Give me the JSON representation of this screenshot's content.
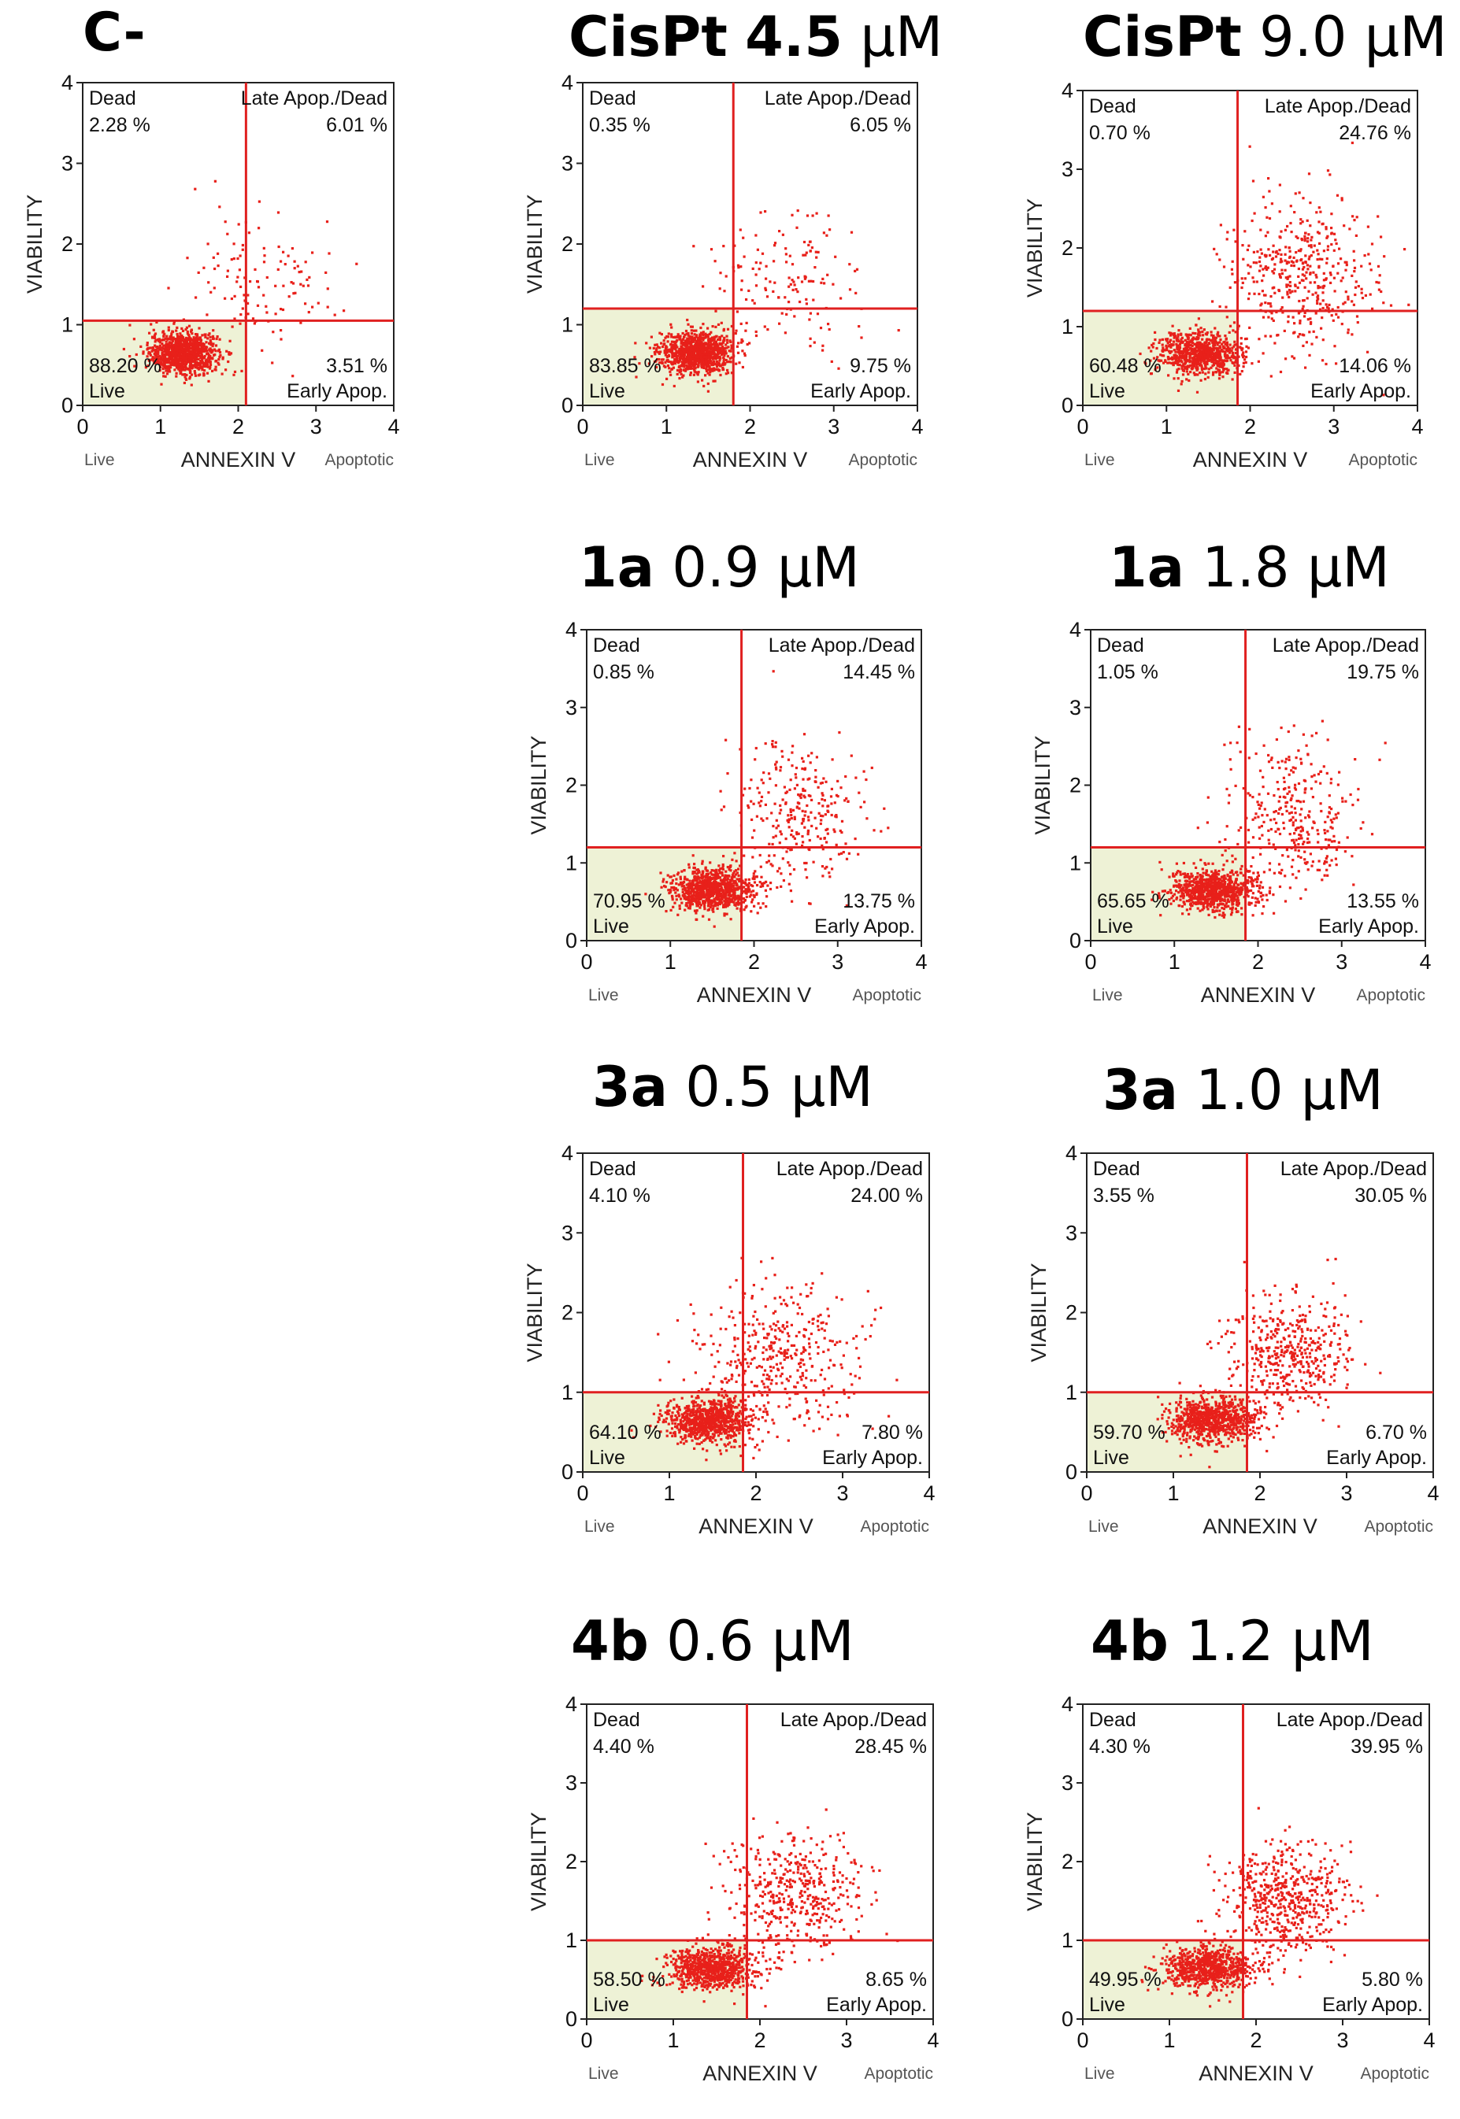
{
  "chart_data": [
    {
      "type": "scatter",
      "title": "C-",
      "title_compound": "C-",
      "title_value": "",
      "title_unit": "",
      "xlabel": "ANNEXIN V",
      "ylabel": "VIABILITY",
      "x_left_label": "Live",
      "x_right_label": "Apoptotic",
      "xlim": [
        0,
        4
      ],
      "ylim": [
        0,
        4
      ],
      "xticks": [
        0,
        1,
        2,
        3,
        4
      ],
      "yticks": [
        0,
        1,
        2,
        3,
        4
      ],
      "gate_x": 2.1,
      "gate_y": 1.05,
      "point_color": "#e8201a",
      "gate_color": "#e02020",
      "live_fill": "#eef2d6",
      "quadrants": {
        "dead_label": "Dead",
        "dead": "2.28 %",
        "late_label": "Late Apop./Dead",
        "late": "6.01 %",
        "live_label": "Live",
        "live": "88.20 %",
        "early_label": "Early Apop.",
        "early": "3.51 %"
      },
      "clusters": [
        {
          "x": 1.3,
          "y": 0.65,
          "sx": 0.22,
          "sy": 0.13,
          "n": 1000
        },
        {
          "x": 2.3,
          "y": 1.6,
          "sx": 0.5,
          "sy": 0.45,
          "n": 120
        }
      ]
    },
    {
      "type": "scatter",
      "title": "CisPt 4.5 μM",
      "title_compound": "CisPt",
      "title_value": "4.5",
      "title_unit": "μM",
      "xlabel": "ANNEXIN V",
      "ylabel": "VIABILITY",
      "x_left_label": "Live",
      "x_right_label": "Apoptotic",
      "xlim": [
        0,
        4
      ],
      "ylim": [
        0,
        4
      ],
      "xticks": [
        0,
        1,
        2,
        3,
        4
      ],
      "yticks": [
        0,
        1,
        2,
        3,
        4
      ],
      "gate_x": 1.8,
      "gate_y": 1.2,
      "point_color": "#e8201a",
      "gate_color": "#e02020",
      "live_fill": "#eef2d6",
      "quadrants": {
        "dead_label": "Dead",
        "dead": "0.35 %",
        "late_label": "Late Apop./Dead",
        "late": "6.05 %",
        "live_label": "Live",
        "live": "83.85 %",
        "early_label": "Early Apop.",
        "early": "9.75 %"
      },
      "clusters": [
        {
          "x": 1.35,
          "y": 0.65,
          "sx": 0.22,
          "sy": 0.13,
          "n": 1000
        },
        {
          "x": 2.5,
          "y": 1.5,
          "sx": 0.55,
          "sy": 0.45,
          "n": 150
        }
      ]
    },
    {
      "type": "scatter",
      "title": "CisPt 9.0 μM",
      "title_compound": "CisPt",
      "title_value": "9.0",
      "title_unit": "μM",
      "xlabel": "ANNEXIN V",
      "ylabel": "VIABILITY",
      "x_left_label": "Live",
      "x_right_label": "Apoptotic",
      "xlim": [
        0,
        4
      ],
      "ylim": [
        0,
        4
      ],
      "xticks": [
        0,
        1,
        2,
        3,
        4
      ],
      "yticks": [
        0,
        1,
        2,
        3,
        4
      ],
      "gate_x": 1.85,
      "gate_y": 1.2,
      "point_color": "#e8201a",
      "gate_color": "#e02020",
      "live_fill": "#eef2d6",
      "quadrants": {
        "dead_label": "Dead",
        "dead": "0.70 %",
        "late_label": "Late Apop./Dead",
        "late": "24.76 %",
        "live_label": "Live",
        "live": "60.48 %",
        "early_label": "Early Apop.",
        "early": "14.06 %"
      },
      "clusters": [
        {
          "x": 1.4,
          "y": 0.65,
          "sx": 0.25,
          "sy": 0.14,
          "n": 800
        },
        {
          "x": 2.6,
          "y": 1.7,
          "sx": 0.45,
          "sy": 0.5,
          "n": 450
        }
      ]
    },
    {
      "type": "scatter",
      "title": "1a 0.9 μM",
      "title_compound": "1a",
      "title_value": "0.9",
      "title_unit": "μM",
      "xlabel": "ANNEXIN V",
      "ylabel": "VIABILITY",
      "x_left_label": "Live",
      "x_right_label": "Apoptotic",
      "xlim": [
        0,
        4
      ],
      "ylim": [
        0,
        4
      ],
      "xticks": [
        0,
        1,
        2,
        3,
        4
      ],
      "yticks": [
        0,
        1,
        2,
        3,
        4
      ],
      "gate_x": 1.85,
      "gate_y": 1.2,
      "point_color": "#e8201a",
      "gate_color": "#e02020",
      "live_fill": "#eef2d6",
      "quadrants": {
        "dead_label": "Dead",
        "dead": "0.85 %",
        "late_label": "Late Apop./Dead",
        "late": "14.45 %",
        "live_label": "Live",
        "live": "70.95 %",
        "early_label": "Early Apop.",
        "early": "13.75 %"
      },
      "clusters": [
        {
          "x": 1.5,
          "y": 0.65,
          "sx": 0.25,
          "sy": 0.14,
          "n": 900
        },
        {
          "x": 2.5,
          "y": 1.6,
          "sx": 0.4,
          "sy": 0.5,
          "n": 300
        }
      ]
    },
    {
      "type": "scatter",
      "title": "1a 1.8 μM",
      "title_compound": "1a",
      "title_value": "1.8",
      "title_unit": "μM",
      "xlabel": "ANNEXIN V",
      "ylabel": "VIABILITY",
      "x_left_label": "Live",
      "x_right_label": "Apoptotic",
      "xlim": [
        0,
        4
      ],
      "ylim": [
        0,
        4
      ],
      "xticks": [
        0,
        1,
        2,
        3,
        4
      ],
      "yticks": [
        0,
        1,
        2,
        3,
        4
      ],
      "gate_x": 1.85,
      "gate_y": 1.2,
      "point_color": "#e8201a",
      "gate_color": "#e02020",
      "live_fill": "#eef2d6",
      "quadrants": {
        "dead_label": "Dead",
        "dead": "1.05 %",
        "late_label": "Late Apop./Dead",
        "late": "19.75 %",
        "live_label": "Live",
        "live": "65.65 %",
        "early_label": "Early Apop.",
        "early": "13.55 %"
      },
      "clusters": [
        {
          "x": 1.45,
          "y": 0.65,
          "sx": 0.25,
          "sy": 0.14,
          "n": 850
        },
        {
          "x": 2.45,
          "y": 1.6,
          "sx": 0.4,
          "sy": 0.5,
          "n": 330
        }
      ]
    },
    {
      "type": "scatter",
      "title": "3a 0.5 μM",
      "title_compound": "3a",
      "title_value": "0.5",
      "title_unit": "μM",
      "xlabel": "ANNEXIN V",
      "ylabel": "VIABILITY",
      "x_left_label": "Live",
      "x_right_label": "Apoptotic",
      "xlim": [
        0,
        4
      ],
      "ylim": [
        0,
        4
      ],
      "xticks": [
        0,
        1,
        2,
        3,
        4
      ],
      "yticks": [
        0,
        1,
        2,
        3,
        4
      ],
      "gate_x": 1.85,
      "gate_y": 1.0,
      "point_color": "#e8201a",
      "gate_color": "#e02020",
      "live_fill": "#eef2d6",
      "quadrants": {
        "dead_label": "Dead",
        "dead": "4.10 %",
        "late_label": "Late Apop./Dead",
        "late": "24.00 %",
        "live_label": "Live",
        "live": "64.10 %",
        "early_label": "Early Apop.",
        "early": "7.80 %"
      },
      "clusters": [
        {
          "x": 1.45,
          "y": 0.65,
          "sx": 0.25,
          "sy": 0.14,
          "n": 850
        },
        {
          "x": 2.3,
          "y": 1.45,
          "sx": 0.45,
          "sy": 0.45,
          "n": 400
        }
      ]
    },
    {
      "type": "scatter",
      "title": "3a 1.0 μM",
      "title_compound": "3a",
      "title_value": "1.0",
      "title_unit": "μM",
      "xlabel": "ANNEXIN V",
      "ylabel": "VIABILITY",
      "x_left_label": "Live",
      "x_right_label": "Apoptotic",
      "xlim": [
        0,
        4
      ],
      "ylim": [
        0,
        4
      ],
      "xticks": [
        0,
        1,
        2,
        3,
        4
      ],
      "yticks": [
        0,
        1,
        2,
        3,
        4
      ],
      "gate_x": 1.85,
      "gate_y": 1.0,
      "point_color": "#e8201a",
      "gate_color": "#e02020",
      "live_fill": "#eef2d6",
      "quadrants": {
        "dead_label": "Dead",
        "dead": "3.55 %",
        "late_label": "Late Apop./Dead",
        "late": "30.05 %",
        "live_label": "Live",
        "live": "59.70 %",
        "early_label": "Early Apop.",
        "early": "6.70 %"
      },
      "clusters": [
        {
          "x": 1.45,
          "y": 0.65,
          "sx": 0.25,
          "sy": 0.14,
          "n": 800
        },
        {
          "x": 2.35,
          "y": 1.5,
          "sx": 0.35,
          "sy": 0.35,
          "n": 450
        }
      ]
    },
    {
      "type": "scatter",
      "title": "4b 0.6 μM",
      "title_compound": "4b",
      "title_value": "0.6",
      "title_unit": "μM",
      "xlabel": "ANNEXIN V",
      "ylabel": "VIABILITY",
      "x_left_label": "Live",
      "x_right_label": "Apoptotic",
      "xlim": [
        0,
        4
      ],
      "ylim": [
        0,
        4
      ],
      "xticks": [
        0,
        1,
        2,
        3,
        4
      ],
      "yticks": [
        0,
        1,
        2,
        3,
        4
      ],
      "gate_x": 1.85,
      "gate_y": 1.0,
      "point_color": "#e8201a",
      "gate_color": "#e02020",
      "live_fill": "#eef2d6",
      "quadrants": {
        "dead_label": "Dead",
        "dead": "4.40 %",
        "late_label": "Late Apop./Dead",
        "late": "28.45 %",
        "live_label": "Live",
        "live": "58.50 %",
        "early_label": "Early Apop.",
        "early": "8.65 %"
      },
      "clusters": [
        {
          "x": 1.45,
          "y": 0.65,
          "sx": 0.25,
          "sy": 0.14,
          "n": 800
        },
        {
          "x": 2.4,
          "y": 1.55,
          "sx": 0.4,
          "sy": 0.4,
          "n": 450
        }
      ]
    },
    {
      "type": "scatter",
      "title": "4b 1.2 μM",
      "title_compound": "4b",
      "title_value": "1.2",
      "title_unit": "μM",
      "xlabel": "ANNEXIN V",
      "ylabel": "VIABILITY",
      "x_left_label": "Live",
      "x_right_label": "Apoptotic",
      "xlim": [
        0,
        4
      ],
      "ylim": [
        0,
        4
      ],
      "xticks": [
        0,
        1,
        2,
        3,
        4
      ],
      "yticks": [
        0,
        1,
        2,
        3,
        4
      ],
      "gate_x": 1.85,
      "gate_y": 1.0,
      "point_color": "#e8201a",
      "gate_color": "#e02020",
      "live_fill": "#eef2d6",
      "quadrants": {
        "dead_label": "Dead",
        "dead": "4.30 %",
        "late_label": "Late Apop./Dead",
        "late": "39.95 %",
        "live_label": "Live",
        "live": "49.95 %",
        "early_label": "Early Apop.",
        "early": "5.80 %"
      },
      "clusters": [
        {
          "x": 1.45,
          "y": 0.65,
          "sx": 0.25,
          "sy": 0.14,
          "n": 750
        },
        {
          "x": 2.35,
          "y": 1.5,
          "sx": 0.35,
          "sy": 0.35,
          "n": 550
        }
      ]
    }
  ]
}
